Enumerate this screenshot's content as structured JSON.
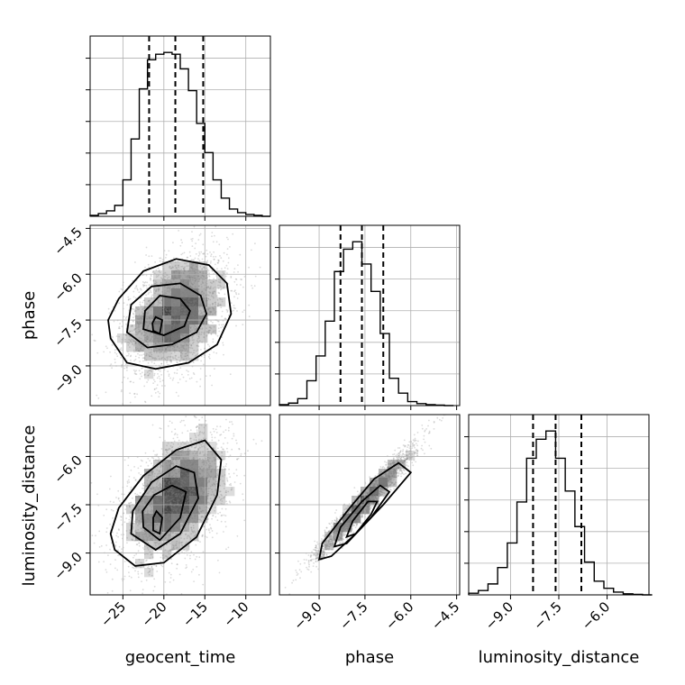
{
  "chart_data": {
    "type": "corner",
    "parameters": [
      "geocent_time",
      "phase",
      "luminosity_distance"
    ],
    "ranges": {
      "geocent_time": [
        -29,
        -7
      ],
      "phase": [
        -10.3,
        -4.4
      ],
      "luminosity_distance": [
        -10.3,
        -4.7
      ]
    },
    "ticks": {
      "geocent_time": [
        -25,
        -20,
        -15,
        -10
      ],
      "phase": [
        -9.0,
        -7.5,
        -6.0,
        -4.5
      ],
      "luminosity_distance": [
        -9.0,
        -7.5,
        -6.0
      ]
    },
    "tick_labels": {
      "geocent_time": [
        "−25",
        "−20",
        "−15",
        "−10"
      ],
      "phase_x": [
        "−9.0",
        "−7.5",
        "−6.0",
        "−4.5"
      ],
      "phase_y": [
        "−4.5",
        "−6.0",
        "−7.5",
        "−9.0"
      ],
      "luminosity_distance_x": [
        "−9.0",
        "−7.5",
        "−6.0"
      ],
      "luminosity_distance_y": [
        "−6.0",
        "−7.5",
        "−9.0"
      ]
    },
    "grid": true,
    "histograms": {
      "geocent_time": {
        "edges": [
          -29,
          -28,
          -27,
          -26,
          -25,
          -24,
          -23,
          -22,
          -21,
          -20,
          -19,
          -18,
          -17,
          -16,
          -15,
          -14,
          -13,
          -12,
          -11,
          -10,
          -9,
          -8,
          -7
        ],
        "counts": [
          1,
          3,
          6,
          12,
          40,
          85,
          140,
          172,
          178,
          180,
          178,
          162,
          138,
          102,
          70,
          40,
          20,
          8,
          4,
          2,
          1,
          0
        ]
      },
      "phase": {
        "edges": [
          -10.3,
          -10.0,
          -9.7,
          -9.4,
          -9.1,
          -8.8,
          -8.5,
          -8.2,
          -7.9,
          -7.6,
          -7.3,
          -7.0,
          -6.7,
          -6.4,
          -6.1,
          -5.8,
          -5.5,
          -5.2,
          -4.9,
          -4.6
        ],
        "counts": [
          2,
          5,
          14,
          50,
          100,
          170,
          270,
          315,
          330,
          285,
          230,
          145,
          55,
          25,
          8,
          4,
          2,
          1,
          0
        ]
      },
      "luminosity_distance": {
        "edges": [
          -10.3,
          -10.0,
          -9.7,
          -9.4,
          -9.1,
          -8.8,
          -8.5,
          -8.2,
          -7.9,
          -7.6,
          -7.3,
          -7.0,
          -6.7,
          -6.4,
          -6.1,
          -5.8,
          -5.5,
          -5.2,
          -4.9,
          -4.6
        ],
        "counts": [
          3,
          8,
          20,
          50,
          95,
          170,
          250,
          285,
          300,
          250,
          190,
          125,
          60,
          25,
          12,
          5,
          2,
          1,
          0
        ]
      }
    },
    "quantiles": {
      "geocent_time": [
        -21.8,
        -18.6,
        -15.2
      ],
      "phase": [
        -8.3,
        -7.6,
        -6.9
      ],
      "luminosity_distance": [
        -8.3,
        -7.6,
        -6.8
      ]
    },
    "densities": {
      "geocent_time_vs_phase": {
        "mean": [
          -18.5,
          -7.3
        ],
        "std": [
          3.2,
          1.0
        ],
        "corr": 0.35,
        "contours": [
          [
            [
              -26.5,
              -8.1
            ],
            [
              -24.5,
              -8.9
            ],
            [
              -21,
              -9.1
            ],
            [
              -17,
              -8.9
            ],
            [
              -13.5,
              -8.3
            ],
            [
              -11.8,
              -7.3
            ],
            [
              -12.3,
              -6.3
            ],
            [
              -14.5,
              -5.7
            ],
            [
              -18.5,
              -5.5
            ],
            [
              -22.5,
              -5.9
            ],
            [
              -25.5,
              -6.8
            ],
            [
              -26.8,
              -7.5
            ]
          ],
          [
            [
              -24.5,
              -7.9
            ],
            [
              -22,
              -8.4
            ],
            [
              -19,
              -8.3
            ],
            [
              -16,
              -7.9
            ],
            [
              -14.8,
              -7.3
            ],
            [
              -15.5,
              -6.7
            ],
            [
              -18,
              -6.3
            ],
            [
              -21.5,
              -6.4
            ],
            [
              -24,
              -7.0
            ]
          ],
          [
            [
              -22.5,
              -7.8
            ],
            [
              -20,
              -8.0
            ],
            [
              -17.5,
              -7.7
            ],
            [
              -16.8,
              -7.2
            ],
            [
              -18,
              -6.8
            ],
            [
              -20.5,
              -6.7
            ],
            [
              -22.3,
              -7.2
            ]
          ],
          [
            [
              -21.3,
              -7.85
            ],
            [
              -20.5,
              -7.95
            ],
            [
              -20.2,
              -7.5
            ],
            [
              -21.0,
              -7.4
            ],
            [
              -21.4,
              -7.6
            ]
          ]
        ]
      },
      "geocent_time_vs_luminosity_distance": {
        "mean": [
          -18.5,
          -7.3
        ],
        "std": [
          3.2,
          1.0
        ],
        "corr": 0.45,
        "contours": [
          [
            [
              -26,
              -8.9
            ],
            [
              -23.5,
              -9.4
            ],
            [
              -20,
              -9.3
            ],
            [
              -16,
              -8.5
            ],
            [
              -13.5,
              -7.2
            ],
            [
              -13,
              -6.1
            ],
            [
              -15,
              -5.5
            ],
            [
              -18.5,
              -5.8
            ],
            [
              -22.5,
              -6.6
            ],
            [
              -25.5,
              -7.6
            ],
            [
              -26.5,
              -8.4
            ]
          ],
          [
            [
              -24,
              -8.4
            ],
            [
              -21,
              -8.9
            ],
            [
              -18,
              -8.4
            ],
            [
              -15.8,
              -7.3
            ],
            [
              -16.3,
              -6.5
            ],
            [
              -18.5,
              -6.3
            ],
            [
              -21.5,
              -6.8
            ],
            [
              -23.8,
              -7.7
            ]
          ],
          [
            [
              -22.5,
              -8.2
            ],
            [
              -20.5,
              -8.6
            ],
            [
              -18,
              -7.9
            ],
            [
              -17.3,
              -7.1
            ],
            [
              -19,
              -6.9
            ],
            [
              -21.2,
              -7.2
            ],
            [
              -22.6,
              -7.7
            ]
          ],
          [
            [
              -21.3,
              -8.3
            ],
            [
              -20.5,
              -8.4
            ],
            [
              -20.2,
              -7.9
            ],
            [
              -20.9,
              -7.7
            ],
            [
              -21.3,
              -7.9
            ]
          ]
        ]
      },
      "phase_vs_luminosity_distance": {
        "mean": [
          -7.5,
          -7.4
        ],
        "std": [
          0.8,
          0.85
        ],
        "corr": 0.97,
        "contours": [
          [
            [
              -9.0,
              -9.2
            ],
            [
              -8.6,
              -9.1
            ],
            [
              -7.8,
              -8.4
            ],
            [
              -6.9,
              -7.5
            ],
            [
              -6.0,
              -6.5
            ],
            [
              -6.4,
              -6.2
            ],
            [
              -7.2,
              -6.7
            ],
            [
              -8.0,
              -7.6
            ],
            [
              -8.9,
              -8.7
            ]
          ],
          [
            [
              -8.5,
              -8.8
            ],
            [
              -8.1,
              -8.7
            ],
            [
              -7.3,
              -7.9
            ],
            [
              -6.7,
              -7.1
            ],
            [
              -7.0,
              -6.9
            ],
            [
              -7.6,
              -7.4
            ],
            [
              -8.3,
              -8.2
            ]
          ],
          [
            [
              -8.1,
              -8.5
            ],
            [
              -7.8,
              -8.4
            ],
            [
              -7.3,
              -7.8
            ],
            [
              -7.1,
              -7.4
            ],
            [
              -7.4,
              -7.4
            ],
            [
              -7.9,
              -8.0
            ]
          ]
        ]
      }
    }
  },
  "labels": {
    "x_geocent_time": "geocent_time",
    "x_phase": "phase",
    "x_luminosity_distance": "luminosity_distance",
    "y_phase": "phase",
    "y_luminosity_distance": "luminosity_distance"
  }
}
